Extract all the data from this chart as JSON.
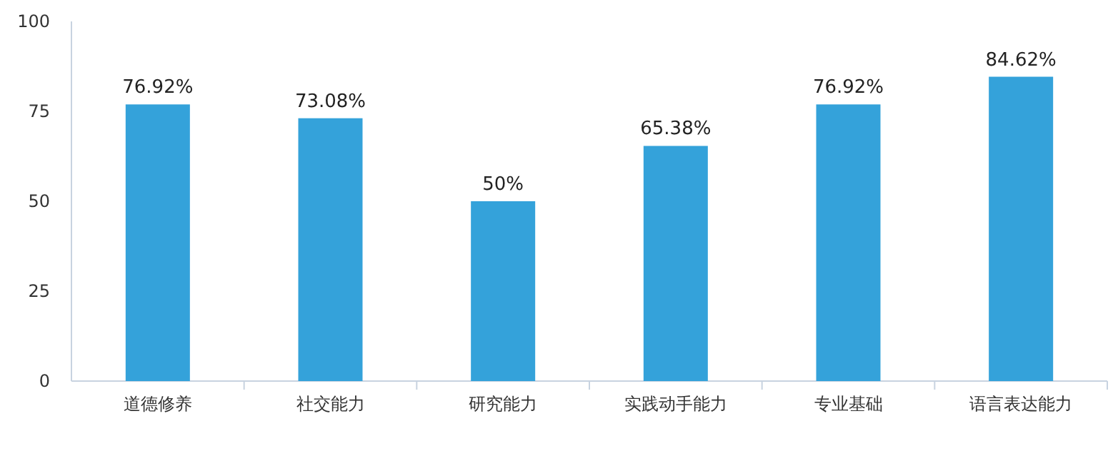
{
  "chart_data": {
    "type": "bar",
    "categories": [
      "道德修养",
      "社交能力",
      "研究能力",
      "实践动手能力",
      "专业基础",
      "语言表达能力"
    ],
    "values": [
      76.92,
      73.08,
      50,
      65.38,
      76.92,
      84.62
    ],
    "value_labels": [
      "76.92%",
      "73.08%",
      "50%",
      "65.38%",
      "76.92%",
      "84.62%"
    ],
    "color": "#34a2da",
    "ylim": [
      0,
      100
    ],
    "yticks": [
      0,
      25,
      50,
      75,
      100
    ],
    "grid": false
  }
}
